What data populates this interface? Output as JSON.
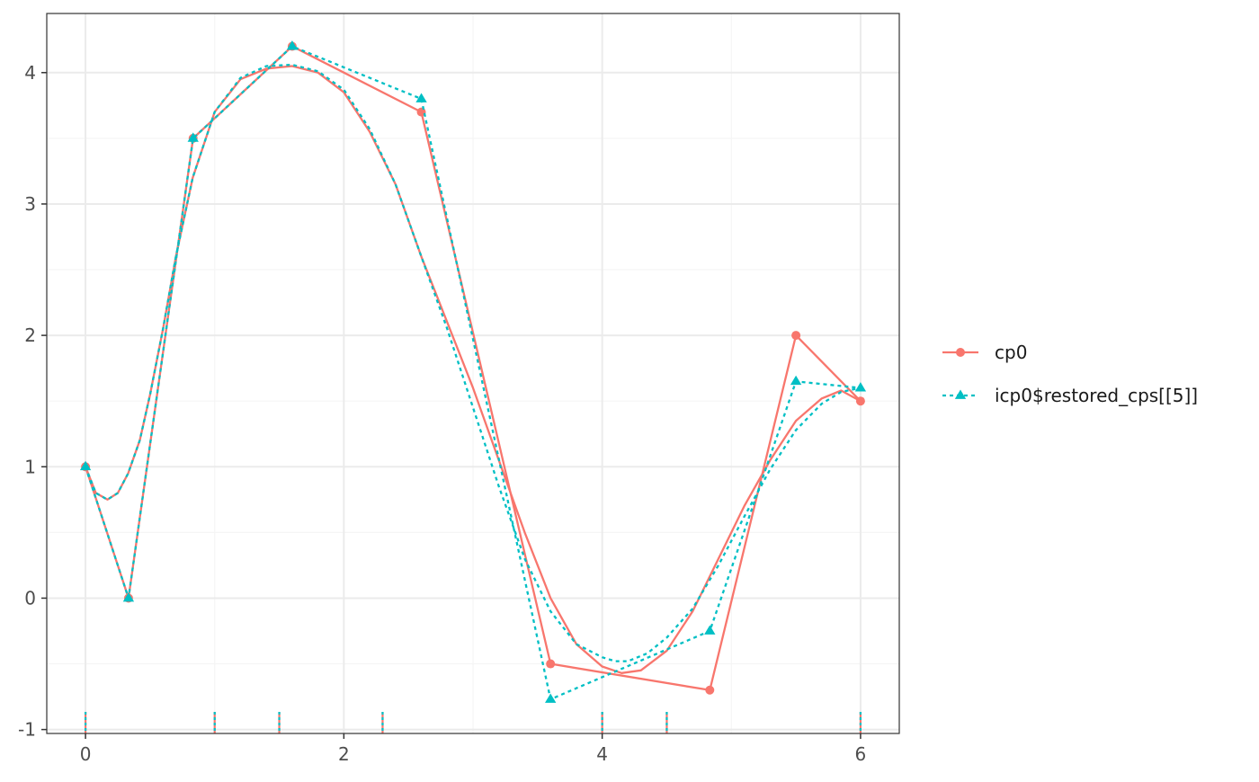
{
  "chart_data": {
    "type": "line",
    "title": "",
    "xlabel": "",
    "ylabel": "",
    "xlim": [
      -0.3,
      6.3
    ],
    "ylim": [
      -1.03,
      4.45
    ],
    "xticks": [
      0,
      2,
      4,
      6
    ],
    "xtick_labels": [
      "0",
      "2",
      "4",
      "6"
    ],
    "yticks": [
      -1,
      0,
      1,
      2,
      3,
      4
    ],
    "ytick_labels": [
      "-1",
      "0",
      "1",
      "2",
      "3",
      "4"
    ],
    "grid": true,
    "theme": "bw",
    "legend_position": "right",
    "colors": {
      "cp0": "#F8766D",
      "icp": "#00BFC4",
      "panel_border": "#333333",
      "grid_major": "#EBEBEB",
      "grid_minor": "#F5F5F5"
    },
    "series": [
      {
        "name": "cp0",
        "color": "#F8766D",
        "marker": "circle",
        "linestyle": "solid",
        "control_polygon": {
          "x": [
            0,
            0.333,
            0.833,
            1.6,
            2.6,
            3.6,
            4.833,
            5.5,
            6.0
          ],
          "y": [
            1.0,
            0.0,
            3.5,
            4.2,
            3.7,
            -0.5,
            -0.7,
            2.0,
            1.5
          ]
        },
        "curve": {
          "x": [
            0,
            0.08,
            0.17,
            0.25,
            0.33,
            0.42,
            0.5,
            0.6,
            0.7,
            0.83,
            1.0,
            1.2,
            1.4,
            1.6,
            1.8,
            2.0,
            2.2,
            2.4,
            2.6,
            2.8,
            3.0,
            3.2,
            3.4,
            3.6,
            3.8,
            4.0,
            4.15,
            4.3,
            4.5,
            4.7,
            4.9,
            5.1,
            5.3,
            5.5,
            5.7,
            5.85,
            6.0
          ],
          "y": [
            1.0,
            0.8,
            0.75,
            0.8,
            0.95,
            1.2,
            1.55,
            2.05,
            2.6,
            3.2,
            3.7,
            3.95,
            4.03,
            4.05,
            4.0,
            3.85,
            3.55,
            3.15,
            2.6,
            2.1,
            1.6,
            1.05,
            0.5,
            0.0,
            -0.35,
            -0.52,
            -0.57,
            -0.55,
            -0.4,
            -0.1,
            0.3,
            0.7,
            1.05,
            1.35,
            1.52,
            1.58,
            1.5
          ]
        }
      },
      {
        "name": "icp0$restored_cps[[5]]",
        "color": "#00BFC4",
        "marker": "triangle",
        "linestyle": "dotted",
        "control_polygon": {
          "x": [
            0,
            0.333,
            0.833,
            1.6,
            2.6,
            3.6,
            4.833,
            5.5,
            6.0
          ],
          "y": [
            1.0,
            0.0,
            3.5,
            4.2,
            3.8,
            -0.77,
            -0.25,
            1.65,
            1.6
          ]
        },
        "curve": {
          "x": [
            0,
            0.08,
            0.17,
            0.25,
            0.33,
            0.42,
            0.5,
            0.6,
            0.7,
            0.83,
            1.0,
            1.2,
            1.4,
            1.6,
            1.8,
            2.0,
            2.2,
            2.4,
            2.6,
            2.8,
            3.0,
            3.2,
            3.4,
            3.6,
            3.8,
            4.0,
            4.1,
            4.2,
            4.35,
            4.5,
            4.7,
            4.9,
            5.1,
            5.3,
            5.5,
            5.7,
            5.85,
            6.0
          ],
          "y": [
            1.0,
            0.8,
            0.75,
            0.8,
            0.95,
            1.2,
            1.55,
            2.05,
            2.6,
            3.2,
            3.7,
            3.96,
            4.05,
            4.06,
            4.01,
            3.87,
            3.57,
            3.15,
            2.6,
            2.05,
            1.45,
            0.85,
            0.3,
            -0.1,
            -0.35,
            -0.45,
            -0.48,
            -0.48,
            -0.42,
            -0.3,
            -0.08,
            0.25,
            0.62,
            0.98,
            1.28,
            1.48,
            1.57,
            1.6
          ]
        }
      }
    ],
    "rug": {
      "x": [
        0,
        1.0,
        1.5,
        2.3,
        4.0,
        4.5,
        6.0
      ],
      "colors": [
        "#F8766D",
        "#00BFC4"
      ]
    }
  }
}
